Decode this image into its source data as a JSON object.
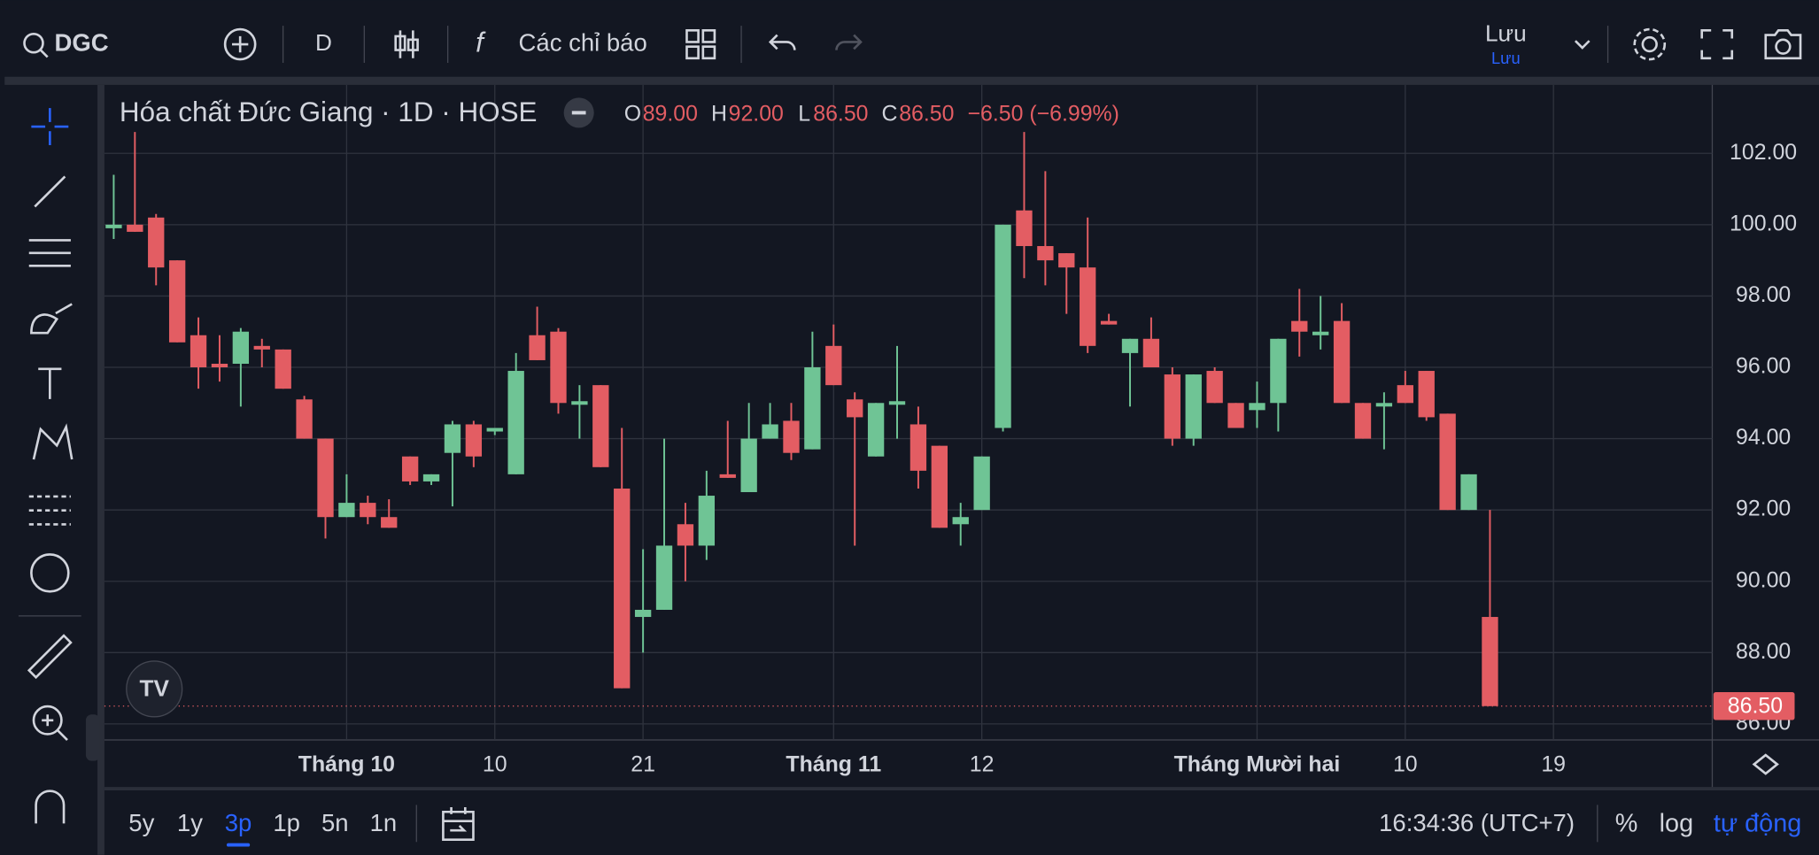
{
  "toolbar": {
    "symbol": "DGC",
    "interval": "D",
    "indicators": "Các chỉ báo",
    "save": "Lưu",
    "save_status": "Lưu"
  },
  "chart_data": {
    "type": "candlestick",
    "title": "Hóa chất Đức Giang · 1D · HOSE",
    "ohlc_legend": {
      "o_key": "O",
      "o": "89.00",
      "h_key": "H",
      "h": "92.00",
      "l_key": "L",
      "l": "86.50",
      "c_key": "C",
      "c": "86.50",
      "change": "−6.50 (−6.99%)"
    },
    "up_color": "#6fc495",
    "down_color": "#e35d63",
    "open": [
      99.9,
      100.0,
      100.2,
      99.0,
      96.9,
      96.1,
      96.1,
      96.6,
      96.5,
      95.1,
      94.0,
      91.8,
      92.2,
      91.8,
      93.5,
      92.8,
      93.6,
      94.4,
      94.2,
      93.0,
      96.9,
      97.0,
      94.95,
      95.5,
      92.6,
      89.0,
      89.2,
      91.6,
      91.0,
      93.0,
      92.5,
      94.0,
      94.5,
      93.7,
      96.6,
      95.1,
      93.5,
      94.95,
      94.4,
      93.8,
      91.6,
      92.0,
      94.3,
      100.4,
      99.4,
      99.2,
      98.8,
      97.3,
      96.4,
      96.8,
      95.8,
      94.0,
      95.9,
      95.0,
      94.8,
      95.0,
      97.3,
      96.9,
      97.3,
      95.0,
      94.9,
      95.5,
      95.9,
      94.7,
      92.0,
      89.0
    ],
    "high": [
      101.4,
      102.6,
      100.3,
      99.0,
      97.4,
      96.9,
      97.1,
      96.8,
      96.5,
      95.2,
      94.0,
      93.0,
      92.4,
      92.3,
      93.5,
      93.0,
      94.5,
      94.5,
      94.3,
      96.4,
      97.7,
      97.1,
      95.5,
      95.5,
      94.3,
      90.9,
      94.0,
      92.2,
      93.1,
      94.5,
      95.0,
      95.0,
      95.0,
      97.0,
      97.2,
      95.3,
      95.0,
      96.6,
      94.9,
      93.8,
      92.2,
      93.5,
      100.0,
      102.6,
      101.5,
      99.2,
      100.2,
      97.5,
      96.8,
      97.4,
      96.0,
      95.8,
      96.0,
      95.0,
      95.6,
      96.8,
      98.2,
      98.0,
      97.8,
      95.0,
      95.3,
      95.9,
      95.9,
      94.7,
      93.0,
      92.0
    ],
    "low": [
      99.6,
      99.8,
      98.3,
      96.7,
      95.4,
      95.6,
      94.9,
      96.0,
      95.4,
      94.0,
      91.2,
      91.8,
      91.6,
      91.5,
      92.7,
      92.7,
      92.1,
      93.2,
      94.1,
      93.0,
      96.2,
      94.7,
      94.0,
      93.2,
      87.0,
      88.0,
      89.2,
      90.0,
      90.6,
      92.9,
      92.5,
      94.0,
      93.4,
      93.7,
      95.5,
      91.0,
      93.5,
      94.0,
      92.6,
      91.5,
      91.0,
      92.0,
      94.2,
      98.5,
      98.3,
      97.5,
      96.4,
      97.2,
      94.9,
      96.0,
      93.8,
      93.8,
      95.0,
      94.3,
      94.3,
      94.2,
      96.3,
      96.5,
      95.0,
      94.0,
      93.7,
      95.0,
      94.5,
      92.0,
      92.0,
      86.5
    ],
    "close": [
      100.0,
      99.8,
      98.8,
      96.7,
      96.0,
      96.0,
      97.0,
      96.5,
      95.4,
      94.0,
      91.8,
      92.2,
      91.8,
      91.5,
      92.8,
      93.0,
      94.4,
      93.5,
      94.3,
      95.9,
      96.2,
      95.0,
      95.05,
      93.2,
      87.0,
      89.2,
      91.0,
      91.0,
      92.4,
      92.9,
      94.0,
      94.4,
      93.6,
      96.0,
      95.5,
      94.6,
      95.0,
      95.05,
      93.1,
      91.5,
      91.8,
      93.5,
      100.0,
      99.4,
      99.0,
      98.8,
      96.6,
      97.2,
      96.8,
      96.0,
      94.0,
      95.8,
      95.0,
      94.3,
      95.0,
      96.8,
      97.0,
      97.0,
      95.0,
      94.0,
      95.0,
      95.0,
      94.6,
      92.0,
      93.0,
      86.5
    ],
    "xlim": [
      -0.44,
      75.5
    ],
    "xticks": [
      {
        "value": 11,
        "label": "Tháng 10"
      },
      {
        "value": 18,
        "label": "10"
      },
      {
        "value": 25,
        "label": "21"
      },
      {
        "value": 34,
        "label": "Tháng 11"
      },
      {
        "value": 41,
        "label": "12"
      },
      {
        "value": 54,
        "label": "Tháng Mười hai"
      },
      {
        "value": 61,
        "label": "10"
      },
      {
        "value": 68,
        "label": "19"
      }
    ],
    "ylim": [
      85.55,
      103.92
    ],
    "yticks": [
      {
        "value": 86,
        "label": "86.00"
      },
      {
        "value": 88,
        "label": "88.00"
      },
      {
        "value": 90,
        "label": "90.00"
      },
      {
        "value": 92,
        "label": "92.00"
      },
      {
        "value": 94,
        "label": "94.00"
      },
      {
        "value": 96,
        "label": "96.00"
      },
      {
        "value": 98,
        "label": "98.00"
      },
      {
        "value": 100,
        "label": "100.00"
      },
      {
        "value": 102,
        "label": "102.00"
      }
    ],
    "grid": true,
    "last_price": {
      "value": 86.5,
      "label": "86.50"
    }
  },
  "bottom_bar": {
    "ranges": [
      "5y",
      "1y",
      "3p",
      "1p",
      "5n",
      "1n"
    ],
    "active_range": 2,
    "time": "16:34:36 (UTC+7)",
    "percent": "%",
    "log": "log",
    "auto": "tự động"
  }
}
